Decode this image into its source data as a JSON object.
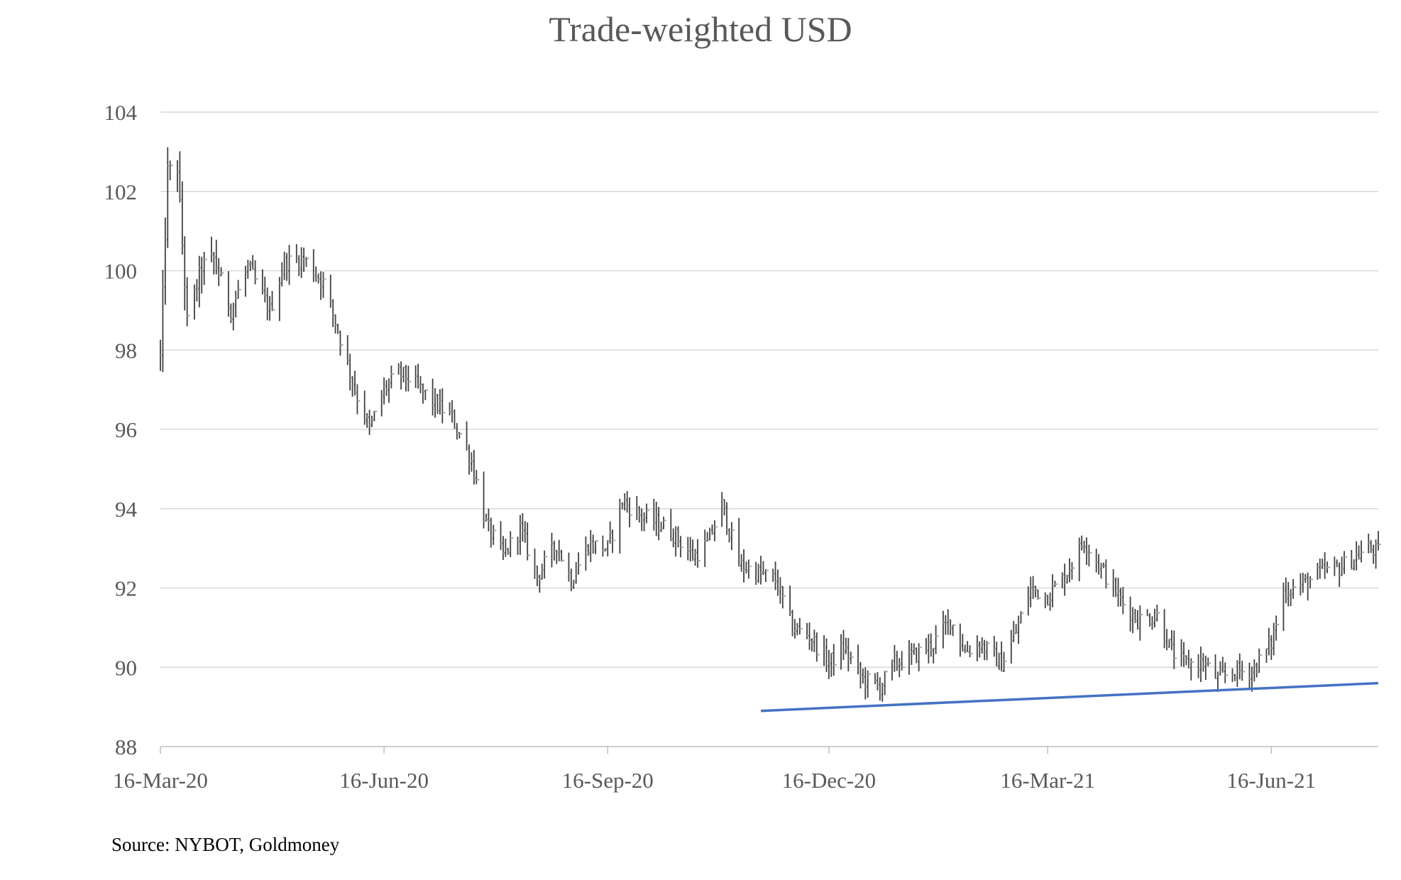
{
  "chart_data": {
    "type": "ohlc",
    "title": "Trade-weighted USD",
    "source": "Source: NYBOT, Goldmoney",
    "xlabel": "",
    "ylabel": "",
    "ylim": [
      88,
      104
    ],
    "yticks": [
      88,
      90,
      92,
      94,
      96,
      98,
      100,
      102,
      104
    ],
    "xlim": [
      "2020-03-16",
      "2021-07-30"
    ],
    "xticks": [
      "16-Mar-20",
      "16-Jun-20",
      "16-Sep-20",
      "16-Dec-20",
      "16-Mar-21",
      "16-Jun-21"
    ],
    "xtick_dates": [
      "2020-03-16",
      "2020-06-16",
      "2020-09-16",
      "2020-12-16",
      "2021-03-16",
      "2021-06-16"
    ],
    "grid": "horizontal",
    "colors": {
      "bars": "#404040",
      "close_tick": "#a6a6a6",
      "trendline": "#4472c4",
      "grid": "#d9d9d9",
      "axis": "#bfbfbf"
    },
    "anchors": [
      [
        "2020-03-16",
        97.8
      ],
      [
        "2020-03-19",
        102.5
      ],
      [
        "2020-03-23",
        102.6
      ],
      [
        "2020-03-27",
        98.7
      ],
      [
        "2020-04-02",
        100.1
      ],
      [
        "2020-04-07",
        100.3
      ],
      [
        "2020-04-14",
        99.0
      ],
      [
        "2020-04-21",
        100.1
      ],
      [
        "2020-04-30",
        99.0
      ],
      [
        "2020-05-06",
        100.2
      ],
      [
        "2020-05-14",
        100.3
      ],
      [
        "2020-05-22",
        99.7
      ],
      [
        "2020-05-29",
        98.3
      ],
      [
        "2020-06-04",
        97.0
      ],
      [
        "2020-06-10",
        96.0
      ],
      [
        "2020-06-16",
        97.0
      ],
      [
        "2020-06-22",
        97.4
      ],
      [
        "2020-06-26",
        97.3
      ],
      [
        "2020-07-06",
        96.7
      ],
      [
        "2020-07-14",
        96.3
      ],
      [
        "2020-07-22",
        95.2
      ],
      [
        "2020-07-28",
        93.6
      ],
      [
        "2020-08-04",
        92.8
      ],
      [
        "2020-08-11",
        93.5
      ],
      [
        "2020-08-18",
        92.3
      ],
      [
        "2020-08-26",
        93.1
      ],
      [
        "2020-09-01",
        92.2
      ],
      [
        "2020-09-08",
        93.1
      ],
      [
        "2020-09-16",
        93.0
      ],
      [
        "2020-09-22",
        94.2
      ],
      [
        "2020-09-30",
        93.8
      ],
      [
        "2020-10-08",
        93.6
      ],
      [
        "2020-10-14",
        93.3
      ],
      [
        "2020-10-21",
        92.8
      ],
      [
        "2020-10-27",
        93.1
      ],
      [
        "2020-11-02",
        94.1
      ],
      [
        "2020-11-09",
        92.6
      ],
      [
        "2020-11-16",
        92.4
      ],
      [
        "2020-11-24",
        92.2
      ],
      [
        "2020-12-01",
        91.0
      ],
      [
        "2020-12-08",
        90.8
      ],
      [
        "2020-12-16",
        90.1
      ],
      [
        "2020-12-22",
        90.5
      ],
      [
        "2020-12-30",
        89.7
      ],
      [
        "2021-01-06",
        89.5
      ],
      [
        "2021-01-12",
        90.1
      ],
      [
        "2021-01-20",
        90.3
      ],
      [
        "2021-01-28",
        90.6
      ],
      [
        "2021-02-04",
        91.2
      ],
      [
        "2021-02-10",
        90.4
      ],
      [
        "2021-02-16",
        90.6
      ],
      [
        "2021-02-25",
        90.1
      ],
      [
        "2021-03-03",
        90.9
      ],
      [
        "2021-03-09",
        92.0
      ],
      [
        "2021-03-16",
        91.8
      ],
      [
        "2021-03-23",
        92.3
      ],
      [
        "2021-03-31",
        93.2
      ],
      [
        "2021-04-08",
        92.4
      ],
      [
        "2021-04-16",
        91.6
      ],
      [
        "2021-04-22",
        91.2
      ],
      [
        "2021-04-30",
        91.3
      ],
      [
        "2021-05-06",
        90.4
      ],
      [
        "2021-05-11",
        90.1
      ],
      [
        "2021-05-19",
        90.1
      ],
      [
        "2021-05-25",
        89.7
      ],
      [
        "2021-06-01",
        89.9
      ],
      [
        "2021-06-08",
        89.9
      ],
      [
        "2021-06-16",
        90.6
      ],
      [
        "2021-06-21",
        91.9
      ],
      [
        "2021-06-29",
        92.1
      ],
      [
        "2021-07-07",
        92.4
      ],
      [
        "2021-07-14",
        92.5
      ],
      [
        "2021-07-21",
        92.8
      ],
      [
        "2021-07-26",
        93.0
      ],
      [
        "2021-07-30",
        92.9
      ]
    ],
    "trendline": {
      "start": [
        "2020-11-18",
        88.9
      ],
      "end": [
        "2021-07-30",
        89.6
      ]
    }
  }
}
